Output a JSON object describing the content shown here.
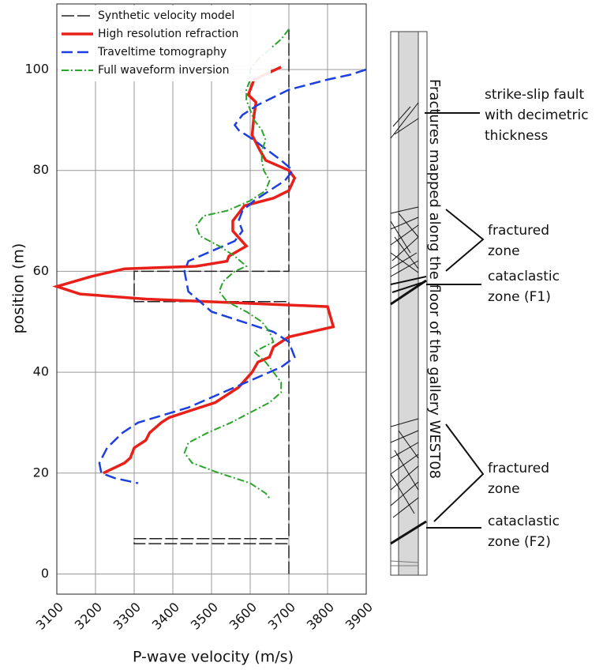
{
  "chart_data": {
    "type": "line",
    "x_label": "P-wave velocity (m/s)",
    "y_label": "position (m)",
    "xlim": [
      3100,
      3900
    ],
    "ylim": [
      -4,
      113
    ],
    "xticks": [
      3100,
      3200,
      3300,
      3400,
      3500,
      3600,
      3700,
      3800,
      3900
    ],
    "yticks": [
      0,
      20,
      40,
      60,
      80,
      100
    ],
    "grid": true,
    "legend": "top-left",
    "series": [
      {
        "name": "Synthetic velocity model",
        "color": "#222222",
        "style": "dashed",
        "values": [
          3700,
          3700,
          3300,
          3300,
          3700,
          3700,
          3300,
          3300,
          3700,
          3700
        ],
        "positions": [
          0,
          6,
          6,
          7,
          7,
          54,
          54,
          60,
          60,
          108
        ]
      },
      {
        "name": "High resolution refraction",
        "color": "#e8201a",
        "style": "solid",
        "values": [
          3680,
          3610,
          3595,
          3615,
          3610,
          3605,
          3625,
          3640,
          3700,
          3715,
          3700,
          3660,
          3585,
          3555,
          3555,
          3590,
          3545,
          3540,
          3460,
          3275,
          3190,
          3100,
          3160,
          3330,
          3800,
          3815,
          3700,
          3660,
          3650,
          3620,
          3605,
          3570,
          3510,
          3390,
          3370,
          3340,
          3330,
          3300,
          3290,
          3275,
          3220
        ],
        "positions": [
          100.5,
          98,
          95,
          93.5,
          91,
          87,
          84,
          82,
          80,
          78.5,
          76,
          74.5,
          73,
          70,
          68,
          65,
          63,
          62,
          61,
          60.5,
          59,
          57,
          55.5,
          54.5,
          53,
          49,
          47,
          45,
          43,
          42,
          40,
          37,
          34,
          31,
          30,
          28,
          26.5,
          25,
          23,
          22,
          20
        ]
      },
      {
        "name": "Traveltime tomography",
        "color": "#1c3fe0",
        "style": "dashed",
        "values": [
          3900,
          3860,
          3800,
          3700,
          3620,
          3580,
          3560,
          3570,
          3610,
          3645,
          3680,
          3710,
          3690,
          3650,
          3610,
          3580,
          3570,
          3580,
          3560,
          3500,
          3440,
          3430,
          3440,
          3500,
          3580,
          3660,
          3700,
          3715,
          3680,
          3620,
          3530,
          3440,
          3310,
          3270,
          3230,
          3210,
          3215,
          3250,
          3310
        ],
        "positions": [
          100,
          99,
          98,
          96,
          93,
          91,
          89,
          88,
          86,
          84,
          82,
          80,
          78,
          76,
          74,
          72,
          70,
          68,
          66,
          64,
          62,
          60,
          56,
          52,
          50,
          48,
          46,
          43,
          41,
          39,
          36,
          33,
          30,
          28,
          25,
          22,
          20,
          19,
          18
        ]
      },
      {
        "name": "Full waveform inversion",
        "color": "#2aa52a",
        "style": "dashdot",
        "values": [
          3700,
          3680,
          3650,
          3620,
          3600,
          3600,
          3590,
          3590,
          3600,
          3610,
          3630,
          3640,
          3630,
          3630,
          3635,
          3650,
          3640,
          3600,
          3540,
          3480,
          3460,
          3470,
          3520,
          3560,
          3590,
          3560,
          3530,
          3520,
          3540,
          3590,
          3630,
          3650,
          3660,
          3610,
          3640,
          3660,
          3680,
          3680,
          3650,
          3600,
          3550,
          3490,
          3440,
          3430,
          3450,
          3520,
          3600,
          3640,
          3650
        ],
        "positions": [
          108,
          106,
          104,
          102,
          100,
          98,
          96,
          94,
          92,
          90,
          88,
          86,
          84,
          82,
          80,
          78,
          76,
          74,
          72,
          71,
          69,
          67,
          65,
          63,
          61,
          60,
          58,
          56,
          54,
          52,
          50,
          48,
          46,
          44,
          42,
          40,
          38,
          36,
          34,
          32,
          30,
          28,
          26,
          24,
          22,
          20,
          18,
          16,
          15
        ]
      }
    ]
  },
  "diagram": {
    "title": "Fractures mapped along the floor of the gallery WEST08",
    "annotations": [
      {
        "lines": [
          "strike-slip fault",
          "with decimetric",
          "thickness"
        ]
      },
      {
        "lines": [
          "fractured",
          "zone"
        ]
      },
      {
        "lines": [
          "cataclastic",
          "zone (F1)"
        ]
      },
      {
        "lines": [
          "fractured",
          "zone"
        ]
      },
      {
        "lines": [
          "cataclastic",
          "zone (F2)"
        ]
      }
    ]
  }
}
